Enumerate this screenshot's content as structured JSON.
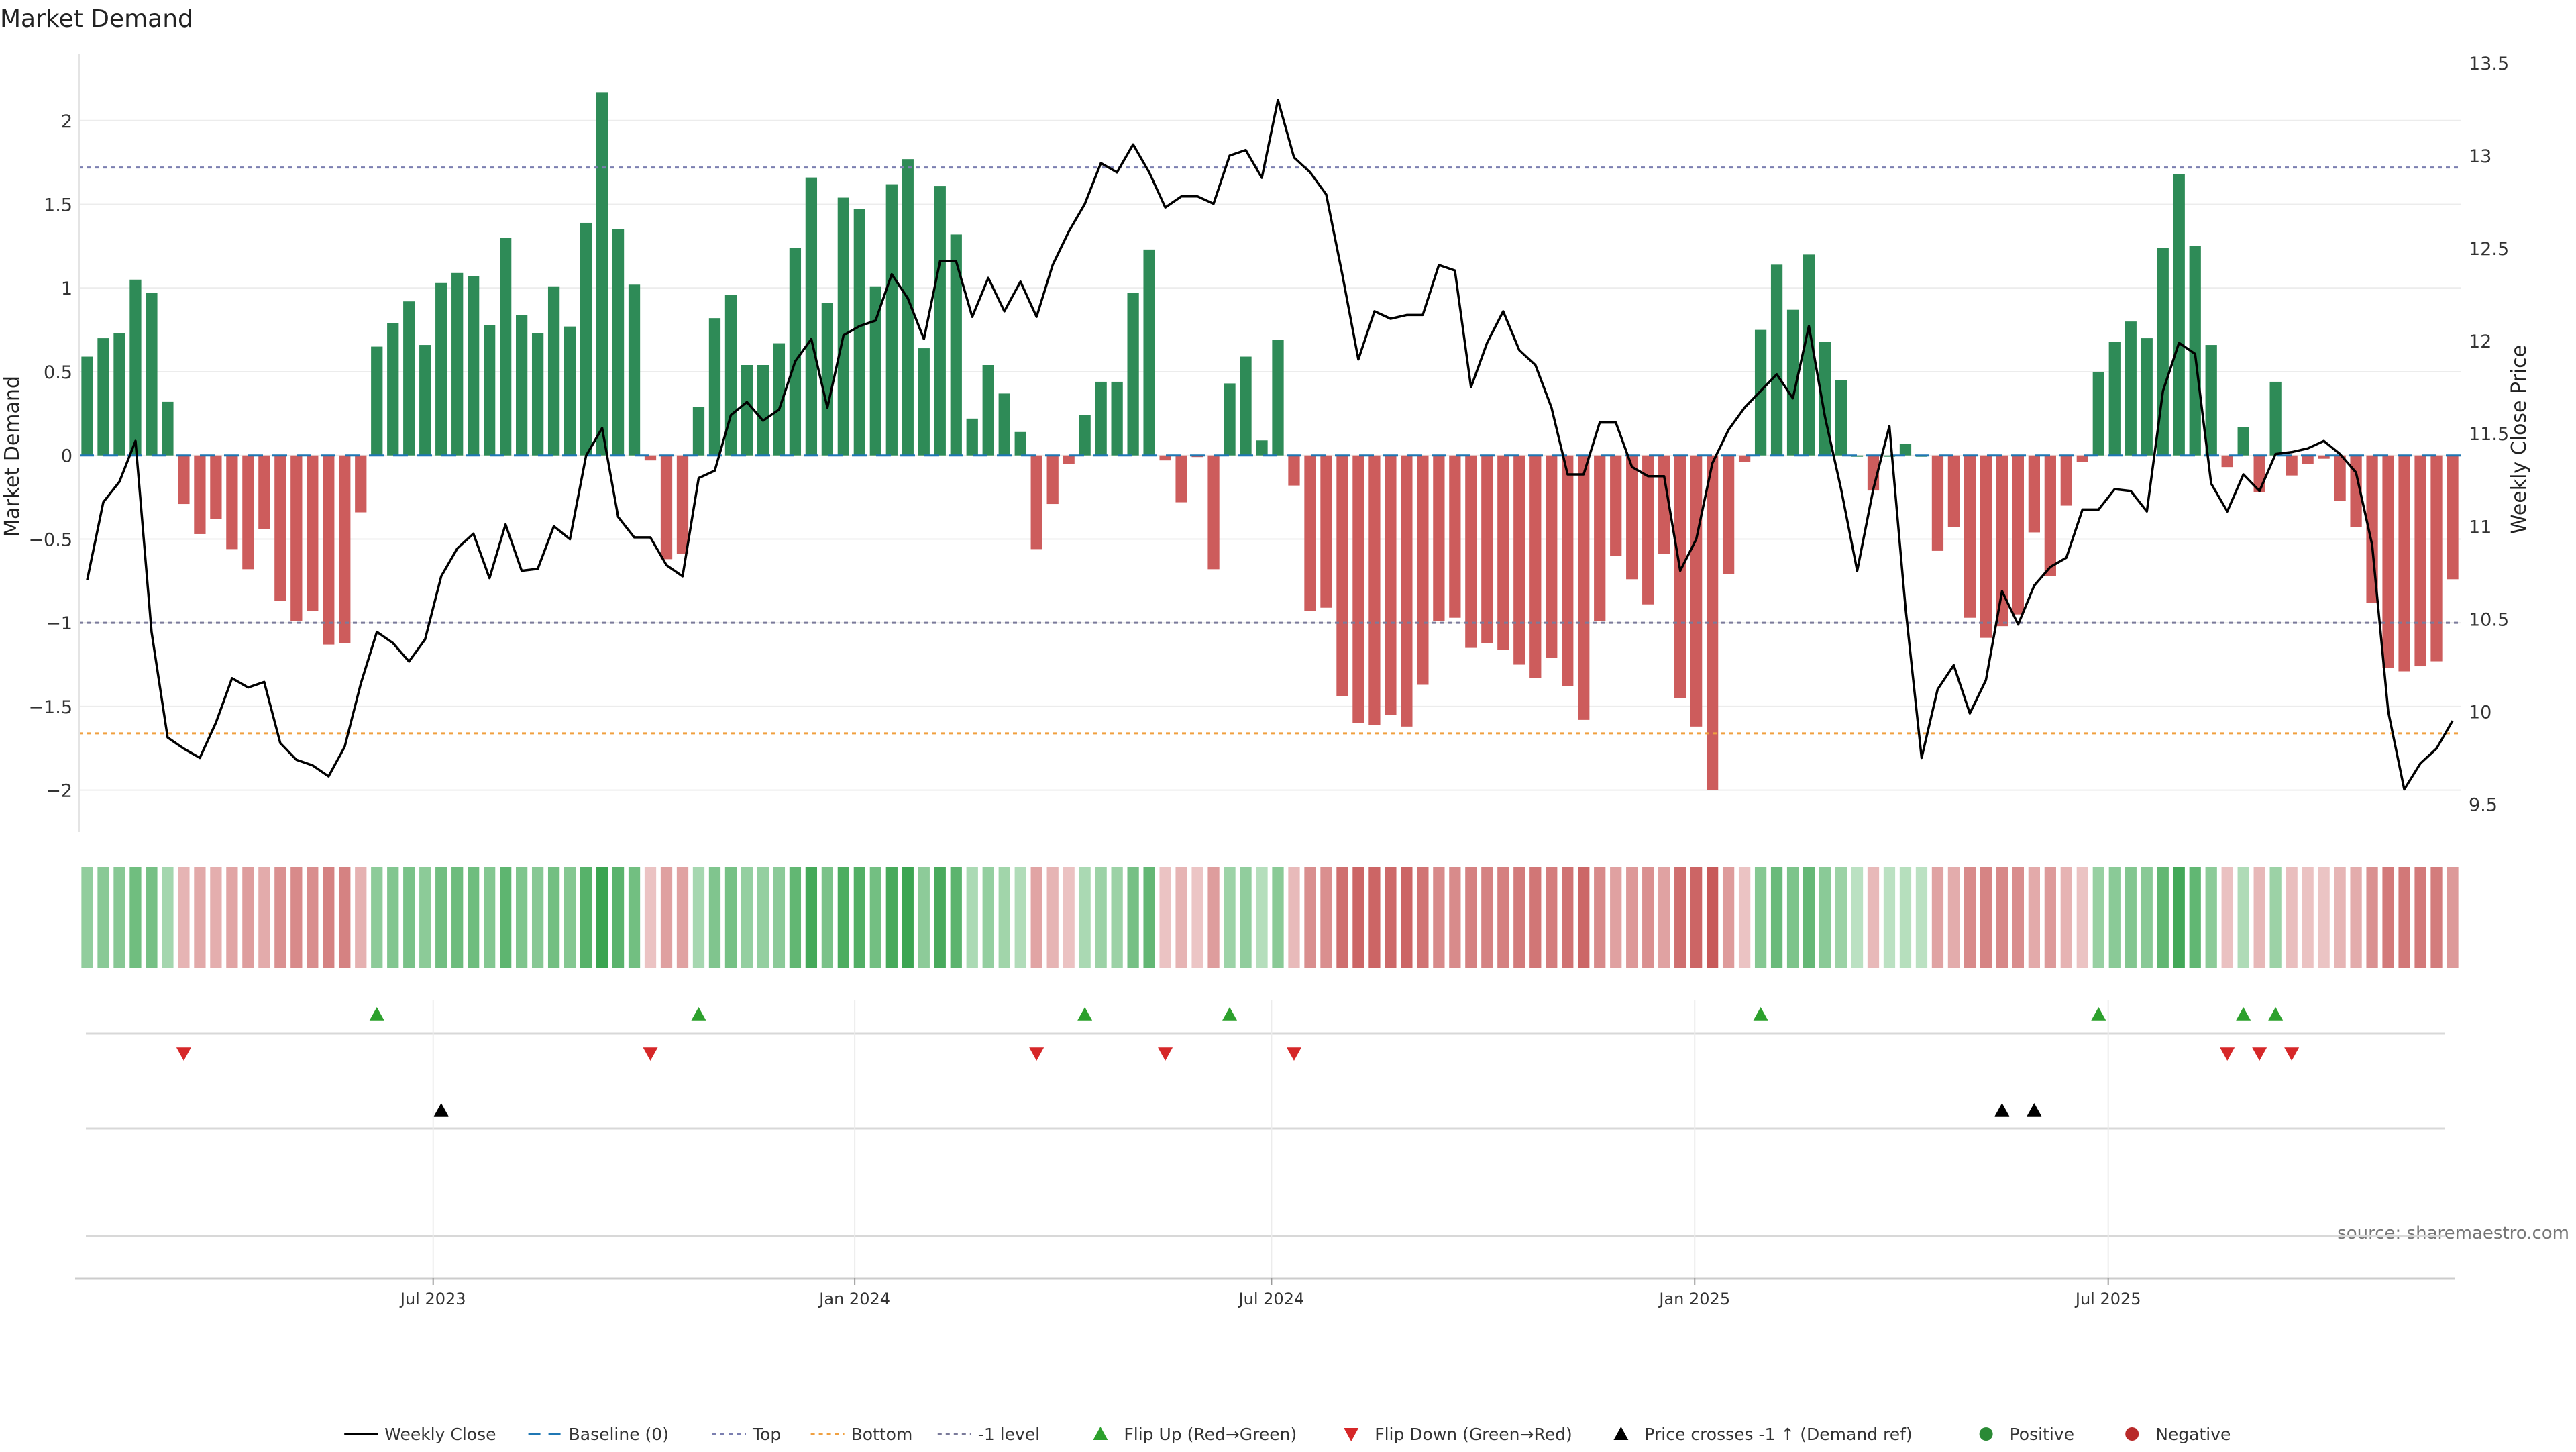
{
  "chart_data": {
    "type": "bar",
    "title": "Market Demand",
    "ylabel": "Market Demand",
    "y2label": "Weekly Close Price",
    "source": "source: sharemaestro.com",
    "ylim": [
      -2.25,
      2.4
    ],
    "y2lim": [
      9.35,
      13.55
    ],
    "yticks": [
      {
        "v": 2,
        "label": "2"
      },
      {
        "v": 1.5,
        "label": "1.5"
      },
      {
        "v": 1,
        "label": "1"
      },
      {
        "v": 0.5,
        "label": "0.5"
      },
      {
        "v": 0,
        "label": "0"
      },
      {
        "v": -0.5,
        "label": "−0.5"
      },
      {
        "v": -1,
        "label": "−1"
      },
      {
        "v": -1.5,
        "label": "−1.5"
      },
      {
        "v": -2,
        "label": "−2"
      }
    ],
    "y2ticks": [
      {
        "v": 13.5,
        "label": "13.5"
      },
      {
        "v": 13,
        "label": "13"
      },
      {
        "v": 12.5,
        "label": "12.5"
      },
      {
        "v": 12,
        "label": "12"
      },
      {
        "v": 11.5,
        "label": "11.5"
      },
      {
        "v": 11,
        "label": "11"
      },
      {
        "v": 10.5,
        "label": "10.5"
      },
      {
        "v": 10,
        "label": "10"
      },
      {
        "v": 9.5,
        "label": "9.5"
      }
    ],
    "xticks": [
      {
        "i": 21.5,
        "label": "Jul 2023"
      },
      {
        "i": 47.7,
        "label": "Jan 2024"
      },
      {
        "i": 73.6,
        "label": "Jul 2024"
      },
      {
        "i": 99.9,
        "label": "Jan 2025"
      },
      {
        "i": 125.6,
        "label": "Jul 2025"
      }
    ],
    "reference_lines": {
      "top": 1.72,
      "bottom": -1.66,
      "minus_one": -1.0,
      "baseline": 0
    },
    "demand": [
      0.59,
      0.7,
      0.73,
      1.05,
      0.97,
      0.32,
      -0.29,
      -0.47,
      -0.38,
      -0.56,
      -0.68,
      -0.44,
      -0.87,
      -0.99,
      -0.93,
      -1.13,
      -1.12,
      -0.34,
      0.65,
      0.79,
      0.92,
      0.66,
      1.03,
      1.09,
      1.07,
      0.78,
      1.3,
      0.84,
      0.73,
      1.01,
      0.77,
      1.39,
      2.17,
      1.35,
      1.02,
      -0.03,
      -0.62,
      -0.59,
      0.29,
      0.82,
      0.96,
      0.54,
      0.54,
      0.67,
      1.24,
      1.66,
      0.91,
      1.54,
      1.47,
      1.01,
      1.62,
      1.77,
      0.64,
      1.61,
      1.32,
      0.22,
      0.54,
      0.37,
      0.14,
      -0.56,
      -0.29,
      -0.05,
      0.24,
      0.44,
      0.44,
      0.97,
      1.23,
      -0.03,
      -0.28,
      -0.01,
      -0.68,
      0.43,
      0.59,
      0.09,
      0.69,
      -0.18,
      -0.93,
      -0.91,
      -1.44,
      -1.6,
      -1.61,
      -1.55,
      -1.62,
      -1.37,
      -0.99,
      -0.97,
      -1.15,
      -1.12,
      -1.16,
      -1.25,
      -1.33,
      -1.21,
      -1.38,
      -1.58,
      -0.99,
      -0.6,
      -0.74,
      -0.89,
      -0.59,
      -1.45,
      -1.62,
      -2.0,
      -0.71,
      -0.04,
      0.75,
      1.14,
      0.87,
      1.2,
      0.68,
      0.45,
      0.0,
      -0.21,
      0.0,
      0.07,
      0.0,
      -0.57,
      -0.43,
      -0.97,
      -1.09,
      -1.02,
      -0.95,
      -0.46,
      -0.72,
      -0.3,
      -0.04,
      0.5,
      0.68,
      0.8,
      0.7,
      1.24,
      1.68,
      1.25,
      0.66,
      -0.07,
      0.17,
      -0.22,
      0.44,
      -0.12,
      -0.05,
      -0.02,
      -0.27,
      -0.43,
      -0.88,
      -1.27,
      -1.29,
      -1.26,
      -1.23,
      -0.74
    ],
    "close": [
      10.71,
      11.13,
      11.24,
      11.46,
      10.43,
      9.86,
      9.8,
      9.75,
      9.94,
      10.18,
      10.13,
      10.16,
      9.83,
      9.74,
      9.71,
      9.65,
      9.81,
      10.15,
      10.43,
      10.37,
      10.27,
      10.39,
      10.73,
      10.88,
      10.96,
      10.72,
      11.01,
      10.76,
      10.77,
      11.0,
      10.93,
      11.38,
      11.53,
      11.05,
      10.94,
      10.94,
      10.79,
      10.73,
      11.26,
      11.3,
      11.6,
      11.67,
      11.57,
      11.63,
      11.89,
      12.01,
      11.64,
      12.03,
      12.08,
      12.11,
      12.36,
      12.23,
      12.01,
      12.43,
      12.43,
      12.13,
      12.34,
      12.16,
      12.32,
      12.13,
      12.41,
      12.59,
      12.74,
      12.96,
      12.91,
      13.06,
      12.91,
      12.72,
      12.78,
      12.78,
      12.74,
      13.0,
      13.03,
      12.88,
      13.3,
      12.99,
      12.91,
      12.79,
      12.36,
      11.9,
      12.16,
      12.12,
      12.14,
      12.14,
      12.41,
      12.38,
      11.75,
      11.99,
      12.16,
      11.95,
      11.87,
      11.64,
      11.28,
      11.28,
      11.56,
      11.56,
      11.32,
      11.27,
      11.27,
      10.76,
      10.93,
      11.34,
      11.52,
      11.64,
      11.73,
      11.82,
      11.69,
      12.08,
      11.59,
      11.2,
      10.76,
      11.2,
      11.54,
      10.56,
      9.75,
      10.12,
      10.25,
      9.99,
      10.17,
      10.65,
      10.47,
      10.68,
      10.78,
      10.83,
      11.09,
      11.09,
      11.2,
      11.19,
      11.08,
      11.73,
      11.99,
      11.93,
      11.23,
      11.08,
      11.28,
      11.19,
      11.39,
      11.4,
      11.42,
      11.46,
      11.39,
      11.29,
      10.9,
      10.0,
      9.58,
      9.72,
      9.8,
      9.95
    ]
  },
  "heat_legend_note": "",
  "legend": {
    "items": [
      {
        "label": "Weekly Close"
      },
      {
        "label": "Baseline (0)"
      },
      {
        "label": "Top"
      },
      {
        "label": "Bottom"
      },
      {
        "label": "-1 level"
      },
      {
        "label": "Flip Up (Red→Green)"
      },
      {
        "label": "Flip Down (Green→Red)"
      },
      {
        "label": "Price crosses -1 ↑ (Demand ref)"
      },
      {
        "label": "Positive"
      },
      {
        "label": "Negative"
      }
    ]
  },
  "colors": {
    "positive": "#2e8b57",
    "negative": "#cd5c5c",
    "flip_up": "#2ca02c",
    "flip_down": "#d62728",
    "top": "#7b7fb0",
    "bottom": "#f0a040",
    "minus_one": "#7a7a9a",
    "baseline": "#1f77b4",
    "price": "#000000"
  }
}
